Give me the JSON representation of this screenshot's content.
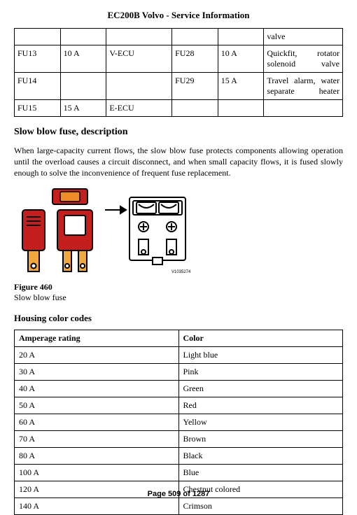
{
  "page_title": "EC200B Volvo - Service Information",
  "fuse_table": {
    "col_widths": [
      "14%",
      "14%",
      "20%",
      "14%",
      "14%",
      "24%"
    ],
    "rows": [
      [
        "",
        "",
        "",
        "",
        "",
        "valve"
      ],
      [
        "FU13",
        "10 A",
        "V-ECU",
        "FU28",
        "10 A",
        "Quickfit, rotator solenoid valve"
      ],
      [
        "FU14",
        "",
        "",
        "FU29",
        "15 A",
        "Travel alarm, water separate heater"
      ],
      [
        "FU15",
        "15 A",
        "E-ECU",
        "",
        "",
        ""
      ]
    ],
    "justify_cells": [
      [
        1,
        5
      ],
      [
        2,
        5
      ]
    ]
  },
  "section1_heading": "Slow blow fuse, description",
  "section1_para": "When large-capacity current flows, the slow blow fuse protects components allowing operation until the overload causes a circuit disconnect, and when small capacity flows, it is fused slowly enough to solve the inconvenience of frequent fuse replacement.",
  "figure": {
    "number": "Figure 460",
    "caption": "Slow blow fuse",
    "ref": "V1035274",
    "colors": {
      "fuse_red": "#c41e1e",
      "fuse_highlight": "#f08b2a",
      "blade": "#f0a83c",
      "outline": "#000000",
      "light": "#ffffff"
    }
  },
  "section2_heading": "Housing color codes",
  "color_table": {
    "headers": [
      "Amperage rating",
      "Color"
    ],
    "rows": [
      [
        "20 A",
        "Light blue"
      ],
      [
        "30 A",
        "Pink"
      ],
      [
        "40 A",
        "Green"
      ],
      [
        "50 A",
        "Red"
      ],
      [
        "60 A",
        "Yellow"
      ],
      [
        "70 A",
        "Brown"
      ],
      [
        "80 A",
        "Black"
      ],
      [
        "100 A",
        "Blue"
      ],
      [
        "120 A",
        "Chestnut colored"
      ],
      [
        "140 A",
        "Crimson"
      ]
    ]
  },
  "footer": "Page 509 of 1287"
}
